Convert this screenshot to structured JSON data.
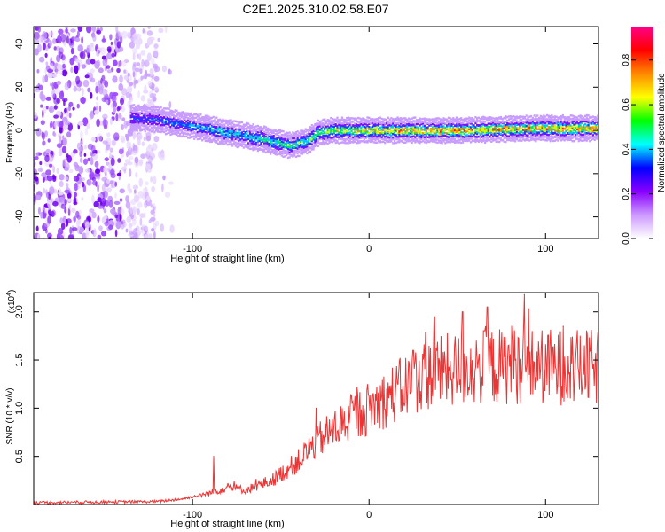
{
  "title": "C2E1.2025.310.02.58.E07",
  "chart_data": [
    {
      "type": "heatmap",
      "xlabel": "Height of straight line (km)",
      "ylabel": "Frequency (Hz)",
      "xlim": [
        -190,
        130
      ],
      "ylim": [
        -50,
        48
      ],
      "xticks": [
        -100,
        0,
        100
      ],
      "yticks": [
        -40,
        -20,
        0,
        20,
        40
      ],
      "tick_labels_x": [
        "-100",
        "0",
        "100"
      ],
      "tick_labels_y": [
        "-40",
        "-20",
        "0",
        "20",
        "40"
      ],
      "colorbar": {
        "label": "Normalized spectral amplitude",
        "range": [
          0,
          0.95
        ],
        "ticks": [
          0.0,
          0.2,
          0.4,
          0.6,
          0.8
        ],
        "tick_labels": [
          "0.0",
          "0.2",
          "0.4",
          "0.6",
          "0.8"
        ],
        "colors": [
          "#ffffff",
          "#cc99ff",
          "#8800ff",
          "#0000ff",
          "#00ffff",
          "#00ff00",
          "#ffff00",
          "#ff8800",
          "#ff0000",
          "#ff0088"
        ]
      },
      "ridge_frequency_hz": {
        "x": [
          -135,
          -120,
          -100,
          -80,
          -60,
          -45,
          -35,
          -28,
          -20,
          0,
          50,
          100,
          130
        ],
        "y": [
          6,
          5,
          2,
          -1,
          -4,
          -7,
          -5,
          -1,
          0,
          0,
          0,
          1,
          1
        ]
      },
      "noise_region_km": [
        -190,
        -120
      ]
    },
    {
      "type": "line",
      "xlabel": "Height of straight line (km)",
      "ylabel": "SNR (10 * v/v)",
      "y_multiplier_label": "(x10",
      "y_multiplier_exp": "4",
      "xlim": [
        -190,
        130
      ],
      "ylim": [
        0,
        2.2
      ],
      "xticks": [
        -100,
        0,
        100
      ],
      "yticks": [
        0.5,
        1.0,
        1.5,
        2.0
      ],
      "tick_labels_x": [
        "-100",
        "0",
        "100"
      ],
      "tick_labels_y": [
        "0.5",
        "1.0",
        "1.5",
        "2.0"
      ],
      "color": "#ee3333",
      "envelope": {
        "x": [
          -190,
          -120,
          -105,
          -90,
          -80,
          -70,
          -55,
          -40,
          -30,
          -20,
          -10,
          0,
          10,
          20,
          30,
          40,
          60,
          80,
          100,
          120,
          130
        ],
        "y": [
          0.02,
          0.03,
          0.06,
          0.12,
          0.18,
          0.15,
          0.25,
          0.45,
          0.65,
          0.78,
          0.9,
          1.0,
          1.1,
          1.22,
          1.33,
          1.38,
          1.42,
          1.44,
          1.43,
          1.42,
          1.42
        ]
      },
      "spikes": [
        {
          "x": -88,
          "y": 0.5
        },
        {
          "x": -30,
          "y": 1.0
        },
        {
          "x": 25,
          "y": 1.6
        },
        {
          "x": 37,
          "y": 1.95
        },
        {
          "x": 53,
          "y": 2.0
        },
        {
          "x": 67,
          "y": 2.05
        },
        {
          "x": 81,
          "y": 1.85
        },
        {
          "x": 88,
          "y": 2.18
        },
        {
          "x": 110,
          "y": 1.85
        }
      ]
    }
  ]
}
